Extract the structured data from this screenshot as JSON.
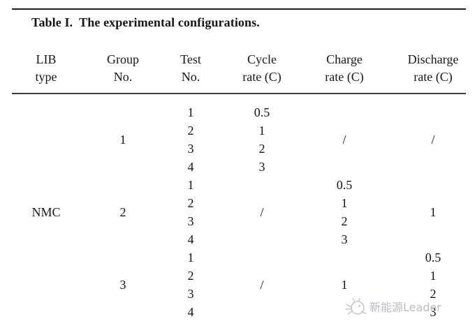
{
  "table": {
    "title_label": "Table I.",
    "title_text": "The experimental configurations.",
    "columns": [
      {
        "id": "lib-type",
        "line1": "LIB",
        "line2": "type"
      },
      {
        "id": "group-no",
        "line1": "Group",
        "line2": "No."
      },
      {
        "id": "test-no",
        "line1": "Test",
        "line2": "No."
      },
      {
        "id": "cycle-rate",
        "line1": "Cycle",
        "line2": "rate (C)"
      },
      {
        "id": "charge-rate",
        "line1": "Charge",
        "line2": "rate (C)"
      },
      {
        "id": "discharge-rate",
        "line1": "Discharge",
        "line2": "rate (C)"
      }
    ],
    "lib_type": "NMC",
    "groups": [
      {
        "group_no": "1",
        "test_no": [
          "1",
          "2",
          "3",
          "4"
        ],
        "cycle_rate": [
          "0.5",
          "1",
          "2",
          "3"
        ],
        "charge_rate": "/",
        "discharge_rate": "/"
      },
      {
        "group_no": "2",
        "test_no": [
          "1",
          "2",
          "3",
          "4"
        ],
        "cycle_rate": "/",
        "charge_rate": [
          "0.5",
          "1",
          "2",
          "3"
        ],
        "discharge_rate": "1"
      },
      {
        "group_no": "3",
        "test_no": [
          "1",
          "2",
          "3",
          "4"
        ],
        "cycle_rate": "/",
        "charge_rate": "1",
        "discharge_rate": [
          "0.5",
          "1",
          "2",
          "3"
        ]
      }
    ]
  },
  "colors": {
    "rule_top": "#1f1f1f",
    "rule_mid": "#3d3d3d",
    "text": "#161616",
    "watermark": "#b9bdc1"
  },
  "watermark": {
    "icon": "bird-doodle",
    "text": "新能源Leader"
  }
}
